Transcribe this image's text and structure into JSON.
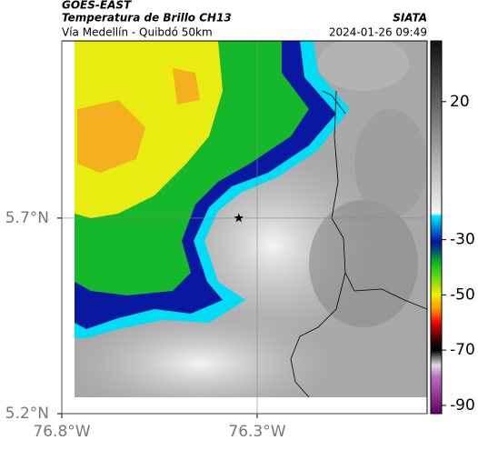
{
  "header": {
    "source": "GOES-EAST",
    "title": "Temperatura de Brillo CH13",
    "subtitle": "Vía Medellín - Quibdó 50km",
    "agency": "SIATA",
    "timestamp": "2024-01-26 09:49"
  },
  "map": {
    "lonlim": [
      -76.8,
      -75.865
    ],
    "latlim": [
      5.2,
      6.153
    ],
    "lonticks": [
      {
        "value": -76.8,
        "label": "76.8°W"
      },
      {
        "value": -76.3,
        "label": "76.3°W"
      }
    ],
    "latticks": [
      {
        "value": 5.2,
        "label": "5.2°N"
      },
      {
        "value": 5.7,
        "label": "5.7°N"
      }
    ],
    "grid": true,
    "marker": {
      "lon": -76.347,
      "lat": 5.7
    }
  },
  "colorbar": {
    "lim": [
      -93,
      42
    ],
    "ticks": [
      20,
      -30,
      -50,
      -70,
      -90
    ]
  }
}
